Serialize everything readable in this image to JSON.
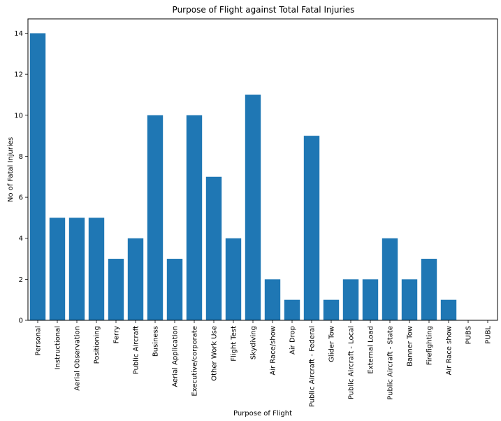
{
  "chart_data": {
    "type": "bar",
    "title": "Purpose of Flight against Total Fatal Injuries",
    "xlabel": "Purpose of Flight",
    "ylabel": "No of Fatal Injuries",
    "ylim": [
      0,
      14.7
    ],
    "yticks": [
      0,
      2,
      4,
      6,
      8,
      10,
      12,
      14
    ],
    "grid": false,
    "bar_color": "#1f77b4",
    "categories": [
      "Personal",
      "Instructional",
      "Aerial Observation",
      "Positioning",
      "Ferry",
      "Public Aircraft",
      "Business",
      "Aerial Application",
      "Executive/corporate",
      "Other Work Use",
      "Flight Test",
      "Skydiving",
      "Air Race/show",
      "Air Drop",
      "Public Aircraft - Federal",
      "Glider Tow",
      "Public Aircraft - Local",
      "External Load",
      "Public Aircraft - State",
      "Banner Tow",
      "Firefighting",
      "Air Race show",
      "PUBS",
      "PUBL"
    ],
    "values": [
      14,
      5,
      5,
      5,
      3,
      4,
      10,
      3,
      10,
      7,
      4,
      11,
      2,
      1,
      9,
      1,
      2,
      2,
      4,
      2,
      3,
      1,
      0,
      0
    ]
  }
}
